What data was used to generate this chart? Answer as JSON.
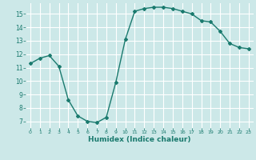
{
  "x": [
    0,
    1,
    2,
    3,
    4,
    5,
    6,
    7,
    8,
    9,
    10,
    11,
    12,
    13,
    14,
    15,
    16,
    17,
    18,
    19,
    20,
    21,
    22,
    23
  ],
  "y": [
    11.3,
    11.7,
    11.9,
    11.1,
    8.6,
    7.4,
    7.0,
    6.9,
    7.3,
    9.9,
    13.1,
    15.2,
    15.4,
    15.5,
    15.5,
    15.4,
    15.2,
    15.0,
    14.5,
    14.4,
    13.7,
    12.8,
    12.5,
    12.4
  ],
  "xlabel": "Humidex (Indice chaleur)",
  "ylim": [
    6.5,
    15.8
  ],
  "xlim": [
    -0.5,
    23.5
  ],
  "yticks": [
    7,
    8,
    9,
    10,
    11,
    12,
    13,
    14,
    15
  ],
  "xticks": [
    0,
    1,
    2,
    3,
    4,
    5,
    6,
    7,
    8,
    9,
    10,
    11,
    12,
    13,
    14,
    15,
    16,
    17,
    18,
    19,
    20,
    21,
    22,
    23
  ],
  "line_color": "#1a7a6e",
  "bg_color": "#cce8e8",
  "grid_color": "#ffffff",
  "marker": "D",
  "marker_size": 2.0,
  "line_width": 1.0
}
